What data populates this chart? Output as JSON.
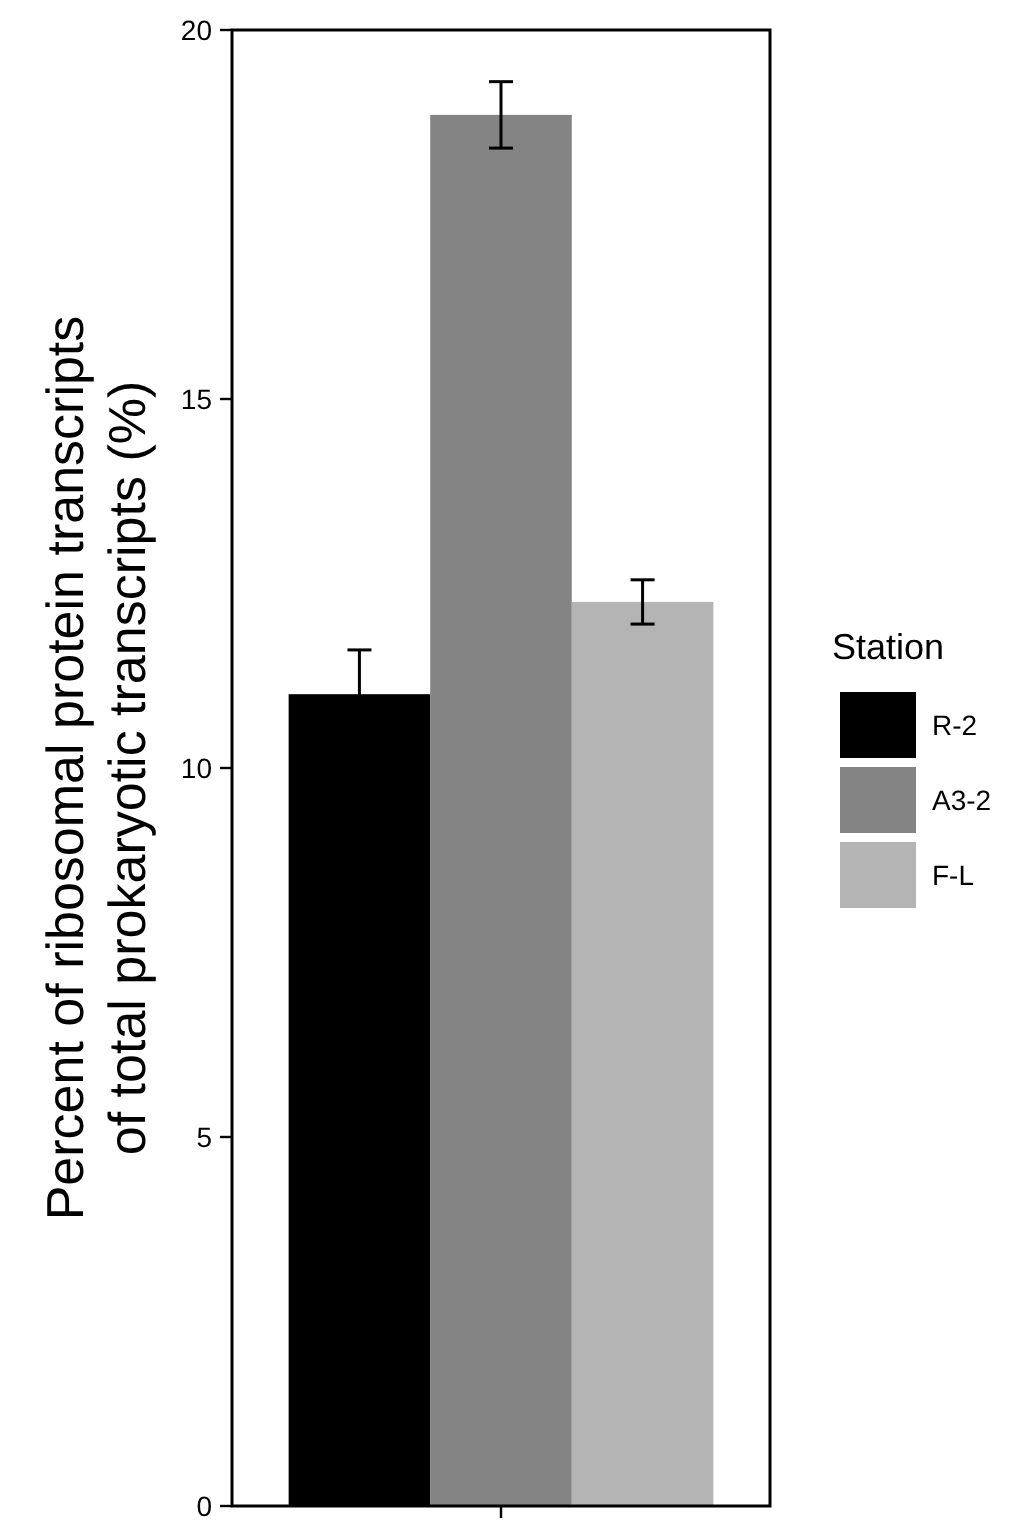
{
  "chart_data": {
    "type": "bar",
    "ylabel": "Percent of ribosomal protein transcripts\nof total prokaryotic transcripts (%)",
    "legend_title": "Station",
    "categories": [
      null
    ],
    "series": [
      {
        "name": "R-2",
        "color": "#000000",
        "values": [
          11.0
        ],
        "errors": [
          0.6
        ]
      },
      {
        "name": "A3-2",
        "color": "#848484",
        "values": [
          18.85
        ],
        "errors": [
          0.45
        ]
      },
      {
        "name": "F-L",
        "color": "#b4b4b4",
        "values": [
          12.25
        ],
        "errors": [
          0.3
        ]
      }
    ],
    "ylim": [
      0,
      20
    ],
    "yticks": [
      0,
      5,
      10,
      15,
      20
    ],
    "grid": false,
    "legend": "right",
    "tick_labels": "y"
  }
}
